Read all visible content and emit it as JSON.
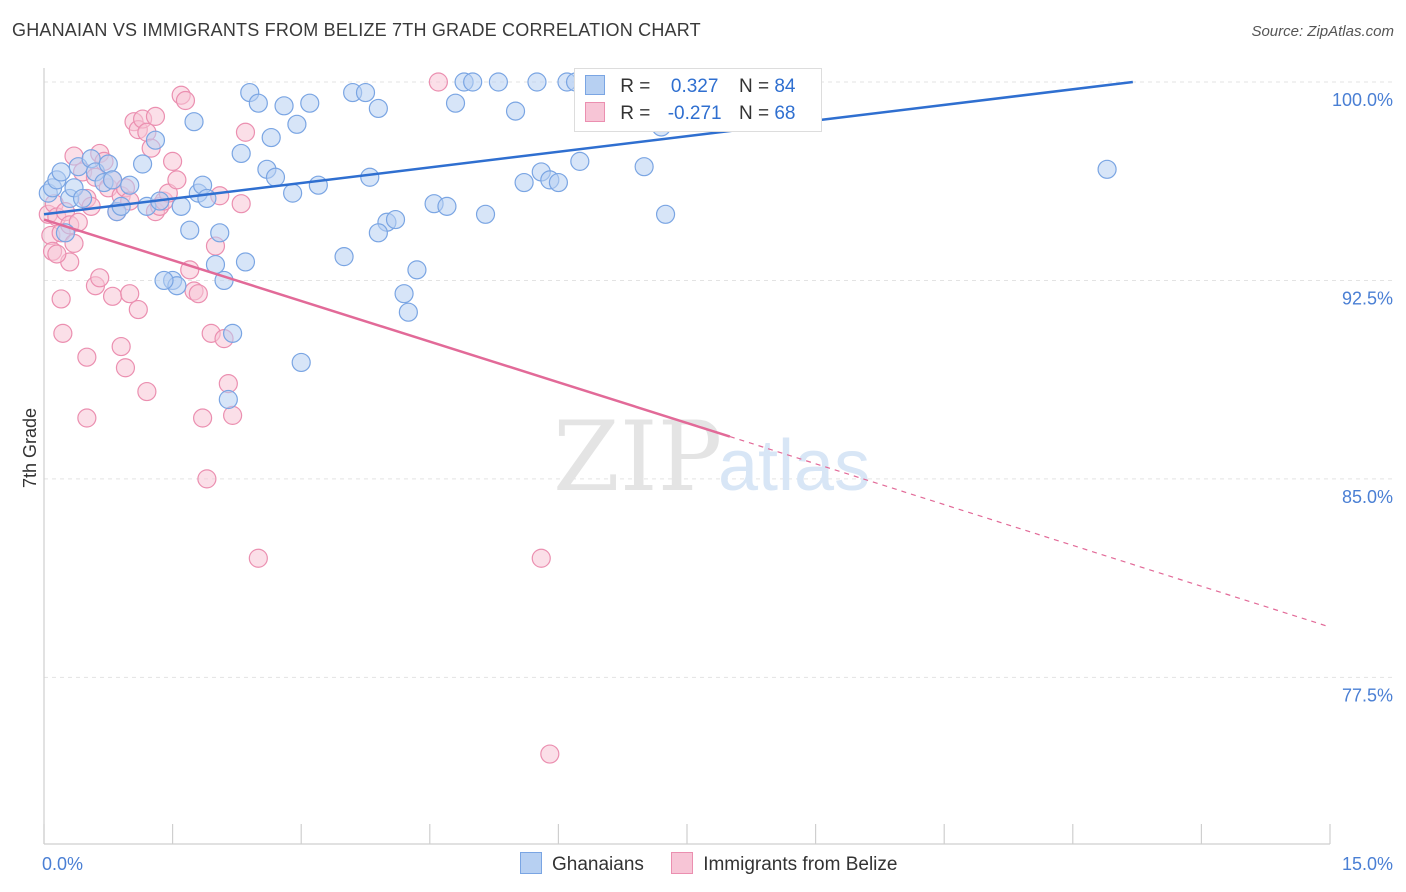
{
  "header": {
    "title": "GHANAIAN VS IMMIGRANTS FROM BELIZE 7TH GRADE CORRELATION CHART",
    "source": "Source: ZipAtlas.com"
  },
  "legend": {
    "r_label": "R =",
    "n_label": "N =",
    "rows": [
      {
        "r": "0.327",
        "n": "84"
      },
      {
        "r": "-0.271",
        "n": "68"
      }
    ]
  },
  "watermark": {
    "zip": "ZIP",
    "atlas": "atlas"
  },
  "colors": {
    "blue_fill": "#b7d0f2",
    "blue_stroke": "#7aa5e3",
    "blue_line": "#2f6fd0",
    "pink_fill": "#f7c5d6",
    "pink_stroke": "#eb8fb0",
    "pink_line": "#e26a98",
    "grid": "#e3e3e3"
  },
  "chart_data": {
    "type": "scatter",
    "title": "GHANAIAN VS IMMIGRANTS FROM BELIZE 7TH GRADE CORRELATION CHART",
    "xlabel": "",
    "ylabel": "7th Grade",
    "xlim": [
      0,
      15
    ],
    "ylim": [
      71.2,
      101.5
    ],
    "x_tick_labels": [
      "0.0%",
      "15.0%"
    ],
    "y_ticks": [
      77.5,
      85.0,
      92.5,
      100.0
    ],
    "y_tick_labels": [
      "77.5%",
      "85.0%",
      "92.5%",
      "100.0%"
    ],
    "grid": true,
    "legend_position": "bottom",
    "series": [
      {
        "name": "Ghanaians",
        "color": "#7aa5e3",
        "r": 0.327,
        "n": 84,
        "trend": {
          "x": [
            0.0,
            12.7
          ],
          "y": [
            95.0,
            100.0
          ],
          "dashed_to": null
        },
        "points": [
          [
            0.05,
            95.8
          ],
          [
            0.1,
            96.0
          ],
          [
            0.15,
            96.3
          ],
          [
            0.2,
            96.6
          ],
          [
            0.25,
            94.3
          ],
          [
            0.3,
            95.6
          ],
          [
            0.35,
            96.0
          ],
          [
            0.4,
            96.8
          ],
          [
            0.55,
            97.1
          ],
          [
            0.6,
            96.6
          ],
          [
            0.7,
            96.2
          ],
          [
            0.75,
            96.9
          ],
          [
            0.8,
            96.3
          ],
          [
            0.85,
            95.1
          ],
          [
            0.9,
            95.3
          ],
          [
            1.15,
            96.9
          ],
          [
            1.2,
            95.3
          ],
          [
            1.35,
            95.5
          ],
          [
            1.5,
            92.5
          ],
          [
            1.6,
            95.3
          ],
          [
            1.55,
            92.3
          ],
          [
            1.4,
            92.5
          ],
          [
            1.7,
            94.4
          ],
          [
            1.75,
            98.5
          ],
          [
            1.8,
            95.8
          ],
          [
            1.85,
            96.1
          ],
          [
            1.9,
            95.6
          ],
          [
            2.0,
            93.1
          ],
          [
            2.05,
            94.3
          ],
          [
            2.1,
            92.5
          ],
          [
            2.15,
            88.0
          ],
          [
            2.2,
            90.5
          ],
          [
            2.3,
            97.3
          ],
          [
            2.35,
            93.2
          ],
          [
            2.4,
            99.6
          ],
          [
            2.5,
            99.2
          ],
          [
            2.6,
            96.7
          ],
          [
            2.65,
            97.9
          ],
          [
            2.7,
            96.4
          ],
          [
            2.8,
            99.1
          ],
          [
            2.9,
            95.8
          ],
          [
            2.95,
            98.4
          ],
          [
            3.0,
            89.4
          ],
          [
            3.1,
            99.2
          ],
          [
            3.2,
            96.1
          ],
          [
            3.5,
            93.4
          ],
          [
            3.6,
            99.6
          ],
          [
            3.75,
            99.6
          ],
          [
            3.8,
            96.4
          ],
          [
            3.9,
            99.0
          ],
          [
            4.0,
            94.7
          ],
          [
            4.1,
            94.8
          ],
          [
            3.9,
            94.3
          ],
          [
            4.2,
            92.0
          ],
          [
            4.25,
            91.3
          ],
          [
            4.35,
            92.9
          ],
          [
            4.55,
            95.4
          ],
          [
            4.7,
            95.3
          ],
          [
            4.8,
            99.2
          ],
          [
            4.9,
            100.0
          ],
          [
            5.0,
            100.0
          ],
          [
            5.15,
            95.0
          ],
          [
            5.3,
            100.0
          ],
          [
            5.5,
            98.9
          ],
          [
            5.6,
            96.2
          ],
          [
            5.75,
            100.0
          ],
          [
            5.8,
            96.6
          ],
          [
            5.9,
            96.3
          ],
          [
            6.0,
            96.2
          ],
          [
            6.1,
            100.0
          ],
          [
            6.2,
            100.0
          ],
          [
            6.25,
            97.0
          ],
          [
            6.4,
            98.6
          ],
          [
            6.5,
            98.5
          ],
          [
            6.7,
            99.8
          ],
          [
            7.0,
            96.8
          ],
          [
            7.2,
            98.3
          ],
          [
            7.25,
            95.0
          ],
          [
            7.4,
            98.6
          ],
          [
            7.8,
            100.0
          ],
          [
            12.4,
            96.7
          ],
          [
            1.0,
            96.1
          ],
          [
            1.3,
            97.8
          ],
          [
            0.45,
            95.6
          ]
        ]
      },
      {
        "name": "Immigrants from Belize",
        "color": "#eb8fb0",
        "r": -0.271,
        "n": 68,
        "trend": {
          "x": [
            0.0,
            8.0
          ],
          "y": [
            94.8,
            86.6
          ],
          "dashed_to": [
            15.0,
            79.4
          ]
        },
        "points": [
          [
            0.05,
            95.0
          ],
          [
            0.08,
            94.2
          ],
          [
            0.1,
            93.6
          ],
          [
            0.12,
            95.4
          ],
          [
            0.15,
            94.9
          ],
          [
            0.2,
            94.3
          ],
          [
            0.25,
            95.1
          ],
          [
            0.3,
            94.6
          ],
          [
            0.35,
            93.9
          ],
          [
            0.4,
            94.7
          ],
          [
            0.45,
            96.6
          ],
          [
            0.5,
            95.6
          ],
          [
            0.55,
            95.3
          ],
          [
            0.6,
            96.4
          ],
          [
            0.65,
            97.3
          ],
          [
            0.7,
            97.0
          ],
          [
            0.75,
            96.0
          ],
          [
            0.8,
            96.3
          ],
          [
            0.85,
            95.1
          ],
          [
            0.9,
            95.7
          ],
          [
            0.95,
            96.0
          ],
          [
            1.0,
            95.5
          ],
          [
            1.05,
            98.5
          ],
          [
            1.1,
            98.2
          ],
          [
            1.15,
            98.6
          ],
          [
            1.2,
            98.1
          ],
          [
            1.25,
            97.5
          ],
          [
            1.3,
            95.1
          ],
          [
            1.35,
            95.3
          ],
          [
            1.4,
            95.5
          ],
          [
            1.45,
            95.8
          ],
          [
            1.5,
            97.0
          ],
          [
            1.55,
            96.3
          ],
          [
            1.6,
            99.5
          ],
          [
            1.65,
            99.3
          ],
          [
            1.7,
            92.9
          ],
          [
            1.75,
            92.1
          ],
          [
            1.8,
            92.0
          ],
          [
            1.85,
            87.3
          ],
          [
            1.9,
            85.0
          ],
          [
            1.95,
            90.5
          ],
          [
            2.0,
            93.8
          ],
          [
            2.05,
            95.7
          ],
          [
            2.1,
            90.3
          ],
          [
            2.15,
            88.6
          ],
          [
            2.2,
            87.4
          ],
          [
            2.3,
            95.4
          ],
          [
            2.35,
            98.1
          ],
          [
            0.2,
            91.8
          ],
          [
            0.22,
            90.5
          ],
          [
            0.5,
            89.6
          ],
          [
            0.5,
            87.3
          ],
          [
            0.6,
            92.3
          ],
          [
            0.65,
            92.6
          ],
          [
            0.8,
            91.9
          ],
          [
            0.9,
            90.0
          ],
          [
            0.95,
            89.2
          ],
          [
            1.0,
            92.0
          ],
          [
            1.1,
            91.4
          ],
          [
            1.2,
            88.3
          ],
          [
            2.5,
            82.0
          ],
          [
            4.6,
            100.0
          ],
          [
            5.8,
            82.0
          ],
          [
            5.9,
            74.6
          ],
          [
            0.3,
            93.2
          ],
          [
            0.35,
            97.2
          ],
          [
            1.3,
            98.7
          ],
          [
            0.15,
            93.5
          ]
        ]
      }
    ]
  },
  "bottom_legend": [
    "Ghanaians",
    "Immigrants from Belize"
  ]
}
